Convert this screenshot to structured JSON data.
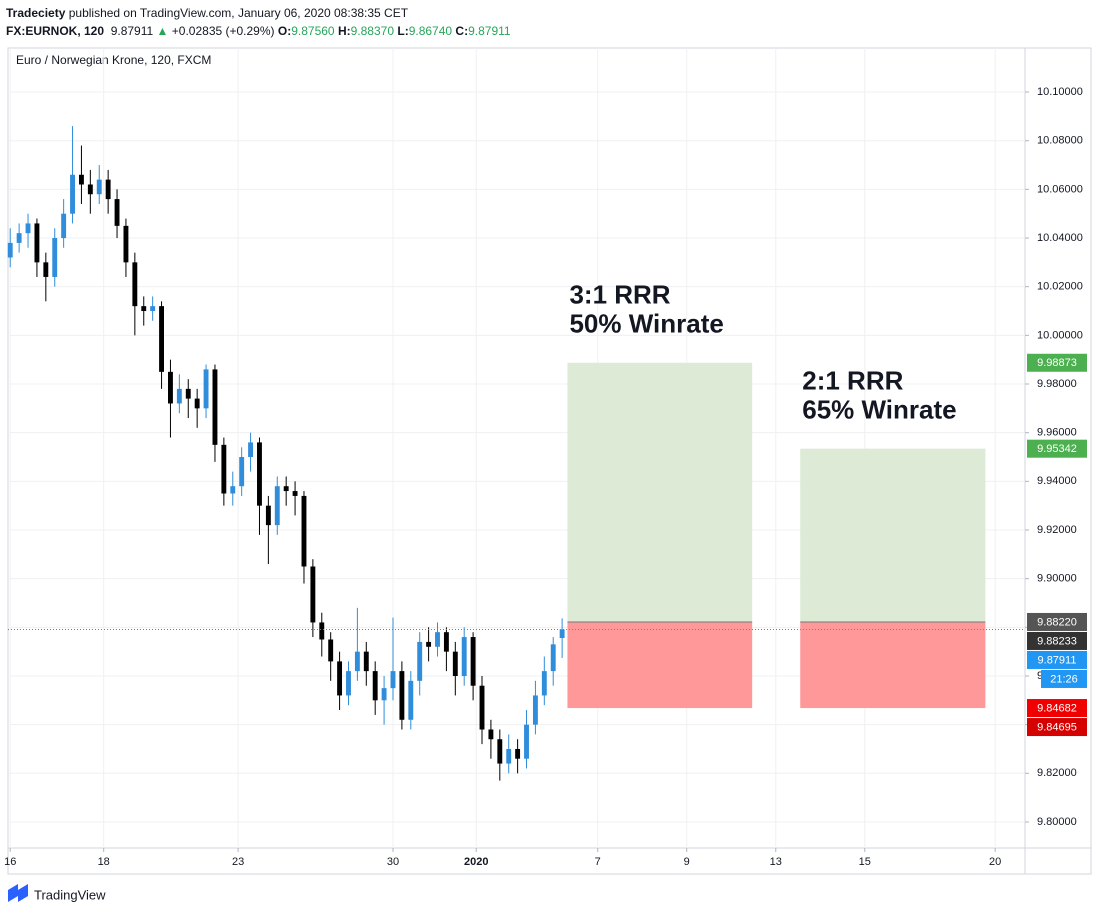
{
  "header": {
    "publisher": "Tradeciety",
    "published_text": "published on TradingView.com, January 06, 2020 08:38:35 CET",
    "symbol": "FX:EURNOK, 120",
    "last": "9.87911",
    "arrow": "▲",
    "change": "+0.02835 (+0.29%)",
    "o_label": "O:",
    "o": "9.87560",
    "h_label": "H:",
    "h": "9.88370",
    "l_label": "L:",
    "l": "9.86740",
    "c_label": "C:",
    "c": "9.87911"
  },
  "footer": {
    "logo": "TradingView"
  },
  "chart_data": {
    "type": "candlestick",
    "title": "Euro / Norwegian Krone, 120, FXCM",
    "up_color": "#2f8ddb",
    "down_color": "#000000",
    "grid": true,
    "x": [
      0,
      0.2,
      0.4,
      0.6,
      0.8,
      1,
      1.2,
      1.4,
      1.6,
      1.8,
      2,
      2.2,
      2.4,
      2.6,
      2.8,
      3,
      3.2,
      3.4,
      3.6,
      3.8,
      4,
      4.2,
      4.4,
      4.6,
      4.8,
      5,
      5.2,
      5.4,
      5.6,
      5.8,
      6,
      6.2,
      6.4,
      6.6,
      6.8,
      7,
      7.2,
      7.4,
      7.6,
      7.8,
      8,
      8.2,
      8.4,
      8.6,
      8.8,
      9,
      9.2,
      9.4,
      9.6,
      9.8,
      10,
      10.2,
      10.4,
      10.6,
      10.8,
      11,
      11.2,
      11.4,
      11.6,
      11.8,
      12,
      12.2,
      12.4
    ],
    "open": [
      10.032,
      10.038,
      10.042,
      10.046,
      10.03,
      10.024,
      10.04,
      10.05,
      10.066,
      10.062,
      10.058,
      10.064,
      10.056,
      10.045,
      10.03,
      10.012,
      10.01,
      10.012,
      9.985,
      9.972,
      9.978,
      9.974,
      9.97,
      9.986,
      9.955,
      9.935,
      9.938,
      9.95,
      9.956,
      9.93,
      9.922,
      9.938,
      9.936,
      9.934,
      9.905,
      9.882,
      9.875,
      9.866,
      9.852,
      9.862,
      9.87,
      9.862,
      9.85,
      9.855,
      9.862,
      9.842,
      9.858,
      9.874,
      9.872,
      9.878,
      9.87,
      9.86,
      9.876,
      9.856,
      9.838,
      9.834,
      9.824,
      9.83,
      9.826,
      9.84,
      9.852,
      9.862,
      9.8756
    ],
    "high": [
      10.044,
      10.046,
      10.05,
      10.048,
      10.034,
      10.044,
      10.056,
      10.086,
      10.078,
      10.068,
      10.07,
      10.068,
      10.06,
      10.048,
      10.034,
      10.016,
      10.016,
      10.014,
      9.99,
      9.984,
      9.982,
      9.978,
      9.988,
      9.988,
      9.958,
      9.944,
      9.954,
      9.96,
      9.958,
      9.934,
      9.942,
      9.942,
      9.94,
      9.936,
      9.908,
      9.886,
      9.878,
      9.87,
      9.866,
      9.888,
      9.874,
      9.866,
      9.86,
      9.884,
      9.866,
      9.862,
      9.878,
      9.88,
      9.882,
      9.88,
      9.874,
      9.88,
      9.878,
      9.86,
      9.842,
      9.838,
      9.836,
      9.834,
      9.846,
      9.858,
      9.868,
      9.876,
      9.8837
    ],
    "low": [
      10.028,
      10.034,
      10.036,
      10.024,
      10.014,
      10.02,
      10.036,
      10.046,
      10.054,
      10.05,
      10.054,
      10.05,
      10.04,
      10.024,
      10.0,
      10.004,
      10.006,
      9.978,
      9.958,
      9.968,
      9.966,
      9.962,
      9.966,
      9.948,
      9.93,
      9.93,
      9.934,
      9.944,
      9.918,
      9.906,
      9.918,
      9.93,
      9.926,
      9.898,
      9.876,
      9.868,
      9.858,
      9.846,
      9.848,
      9.858,
      9.856,
      9.844,
      9.84,
      9.85,
      9.838,
      9.838,
      9.852,
      9.866,
      9.868,
      9.862,
      9.852,
      9.856,
      9.85,
      9.832,
      9.826,
      9.817,
      9.82,
      9.82,
      9.822,
      9.836,
      9.848,
      9.856,
      9.8674
    ],
    "close": [
      10.038,
      10.042,
      10.046,
      10.03,
      10.024,
      10.04,
      10.05,
      10.066,
      10.062,
      10.058,
      10.064,
      10.056,
      10.045,
      10.03,
      10.012,
      10.01,
      10.012,
      9.985,
      9.972,
      9.978,
      9.974,
      9.97,
      9.986,
      9.955,
      9.935,
      9.938,
      9.95,
      9.956,
      9.93,
      9.922,
      9.938,
      9.936,
      9.934,
      9.905,
      9.882,
      9.875,
      9.866,
      9.852,
      9.862,
      9.87,
      9.862,
      9.85,
      9.855,
      9.862,
      9.842,
      9.858,
      9.874,
      9.872,
      9.878,
      9.87,
      9.86,
      9.876,
      9.856,
      9.838,
      9.834,
      9.824,
      9.83,
      9.826,
      9.84,
      9.852,
      9.862,
      9.873,
      9.87911
    ],
    "xlim": [
      -0.05,
      22.8
    ],
    "xticks": [
      {
        "value": 0,
        "label": "16"
      },
      {
        "value": 2.1,
        "label": "18"
      },
      {
        "value": 5.12,
        "label": "23"
      },
      {
        "value": 8.6,
        "label": "30"
      },
      {
        "value": 10.47,
        "label": "2020"
      },
      {
        "value": 13.2,
        "label": "7"
      },
      {
        "value": 15.2,
        "label": "9"
      },
      {
        "value": 17.2,
        "label": "13"
      },
      {
        "value": 19.2,
        "label": "15"
      },
      {
        "value": 22.13,
        "label": "20"
      }
    ],
    "ylim": [
      9.7893,
      10.1181
    ],
    "yticks": [
      {
        "value": 9.8,
        "label": "9.80000"
      },
      {
        "value": 9.82,
        "label": "9.82000"
      },
      {
        "value": 9.84,
        "label": "9.84000"
      },
      {
        "value": 9.86,
        "label": "9.86000"
      },
      {
        "value": 9.88,
        "label": "9.88000"
      },
      {
        "value": 9.9,
        "label": "9.90000"
      },
      {
        "value": 9.92,
        "label": "9.92000"
      },
      {
        "value": 9.94,
        "label": "9.94000"
      },
      {
        "value": 9.96,
        "label": "9.96000"
      },
      {
        "value": 9.98,
        "label": "9.98000"
      },
      {
        "value": 10,
        "label": "10.00000"
      },
      {
        "value": 10.02,
        "label": "10.02000"
      },
      {
        "value": 10.04,
        "label": "10.04000"
      },
      {
        "value": 10.06,
        "label": "10.06000"
      },
      {
        "value": 10.08,
        "label": "10.08000"
      },
      {
        "value": 10.1,
        "label": "10.10000"
      }
    ],
    "last_price": 9.87911,
    "last_price_color": "#2196f3",
    "positions": [
      {
        "x_range": [
          12.52,
          16.67
        ],
        "target": 9.98873,
        "entry": 9.8822,
        "stop": 9.84682,
        "label": [
          "3:1 RRR",
          "50% Winrate"
        ]
      },
      {
        "x_range": [
          17.75,
          21.91
        ],
        "target": 9.95342,
        "entry": 9.8822,
        "stop": 9.84682,
        "label": [
          "2:1 RRR",
          "65% Winrate"
        ]
      }
    ],
    "target_color": "#dcead6",
    "stop_color": "#ff9999",
    "price_labels": [
      {
        "value": 9.98873,
        "label": "9.98873",
        "color": "#4caf50"
      },
      {
        "value": 9.95342,
        "label": "9.95342",
        "color": "#4caf50"
      },
      {
        "value": 9.8822,
        "label": "9.88220",
        "color": "#555555"
      },
      {
        "value": 9.88233,
        "label": "9.88233",
        "color": "#333333"
      },
      {
        "value": 9.87911,
        "label": "9.87911",
        "color": "#2196f3"
      },
      {
        "value": 9.84682,
        "label": "9.84682",
        "color": "#f00000"
      },
      {
        "value": 9.84695,
        "label": "9.84695",
        "color": "#d50000"
      }
    ],
    "countdown": "21:26"
  }
}
